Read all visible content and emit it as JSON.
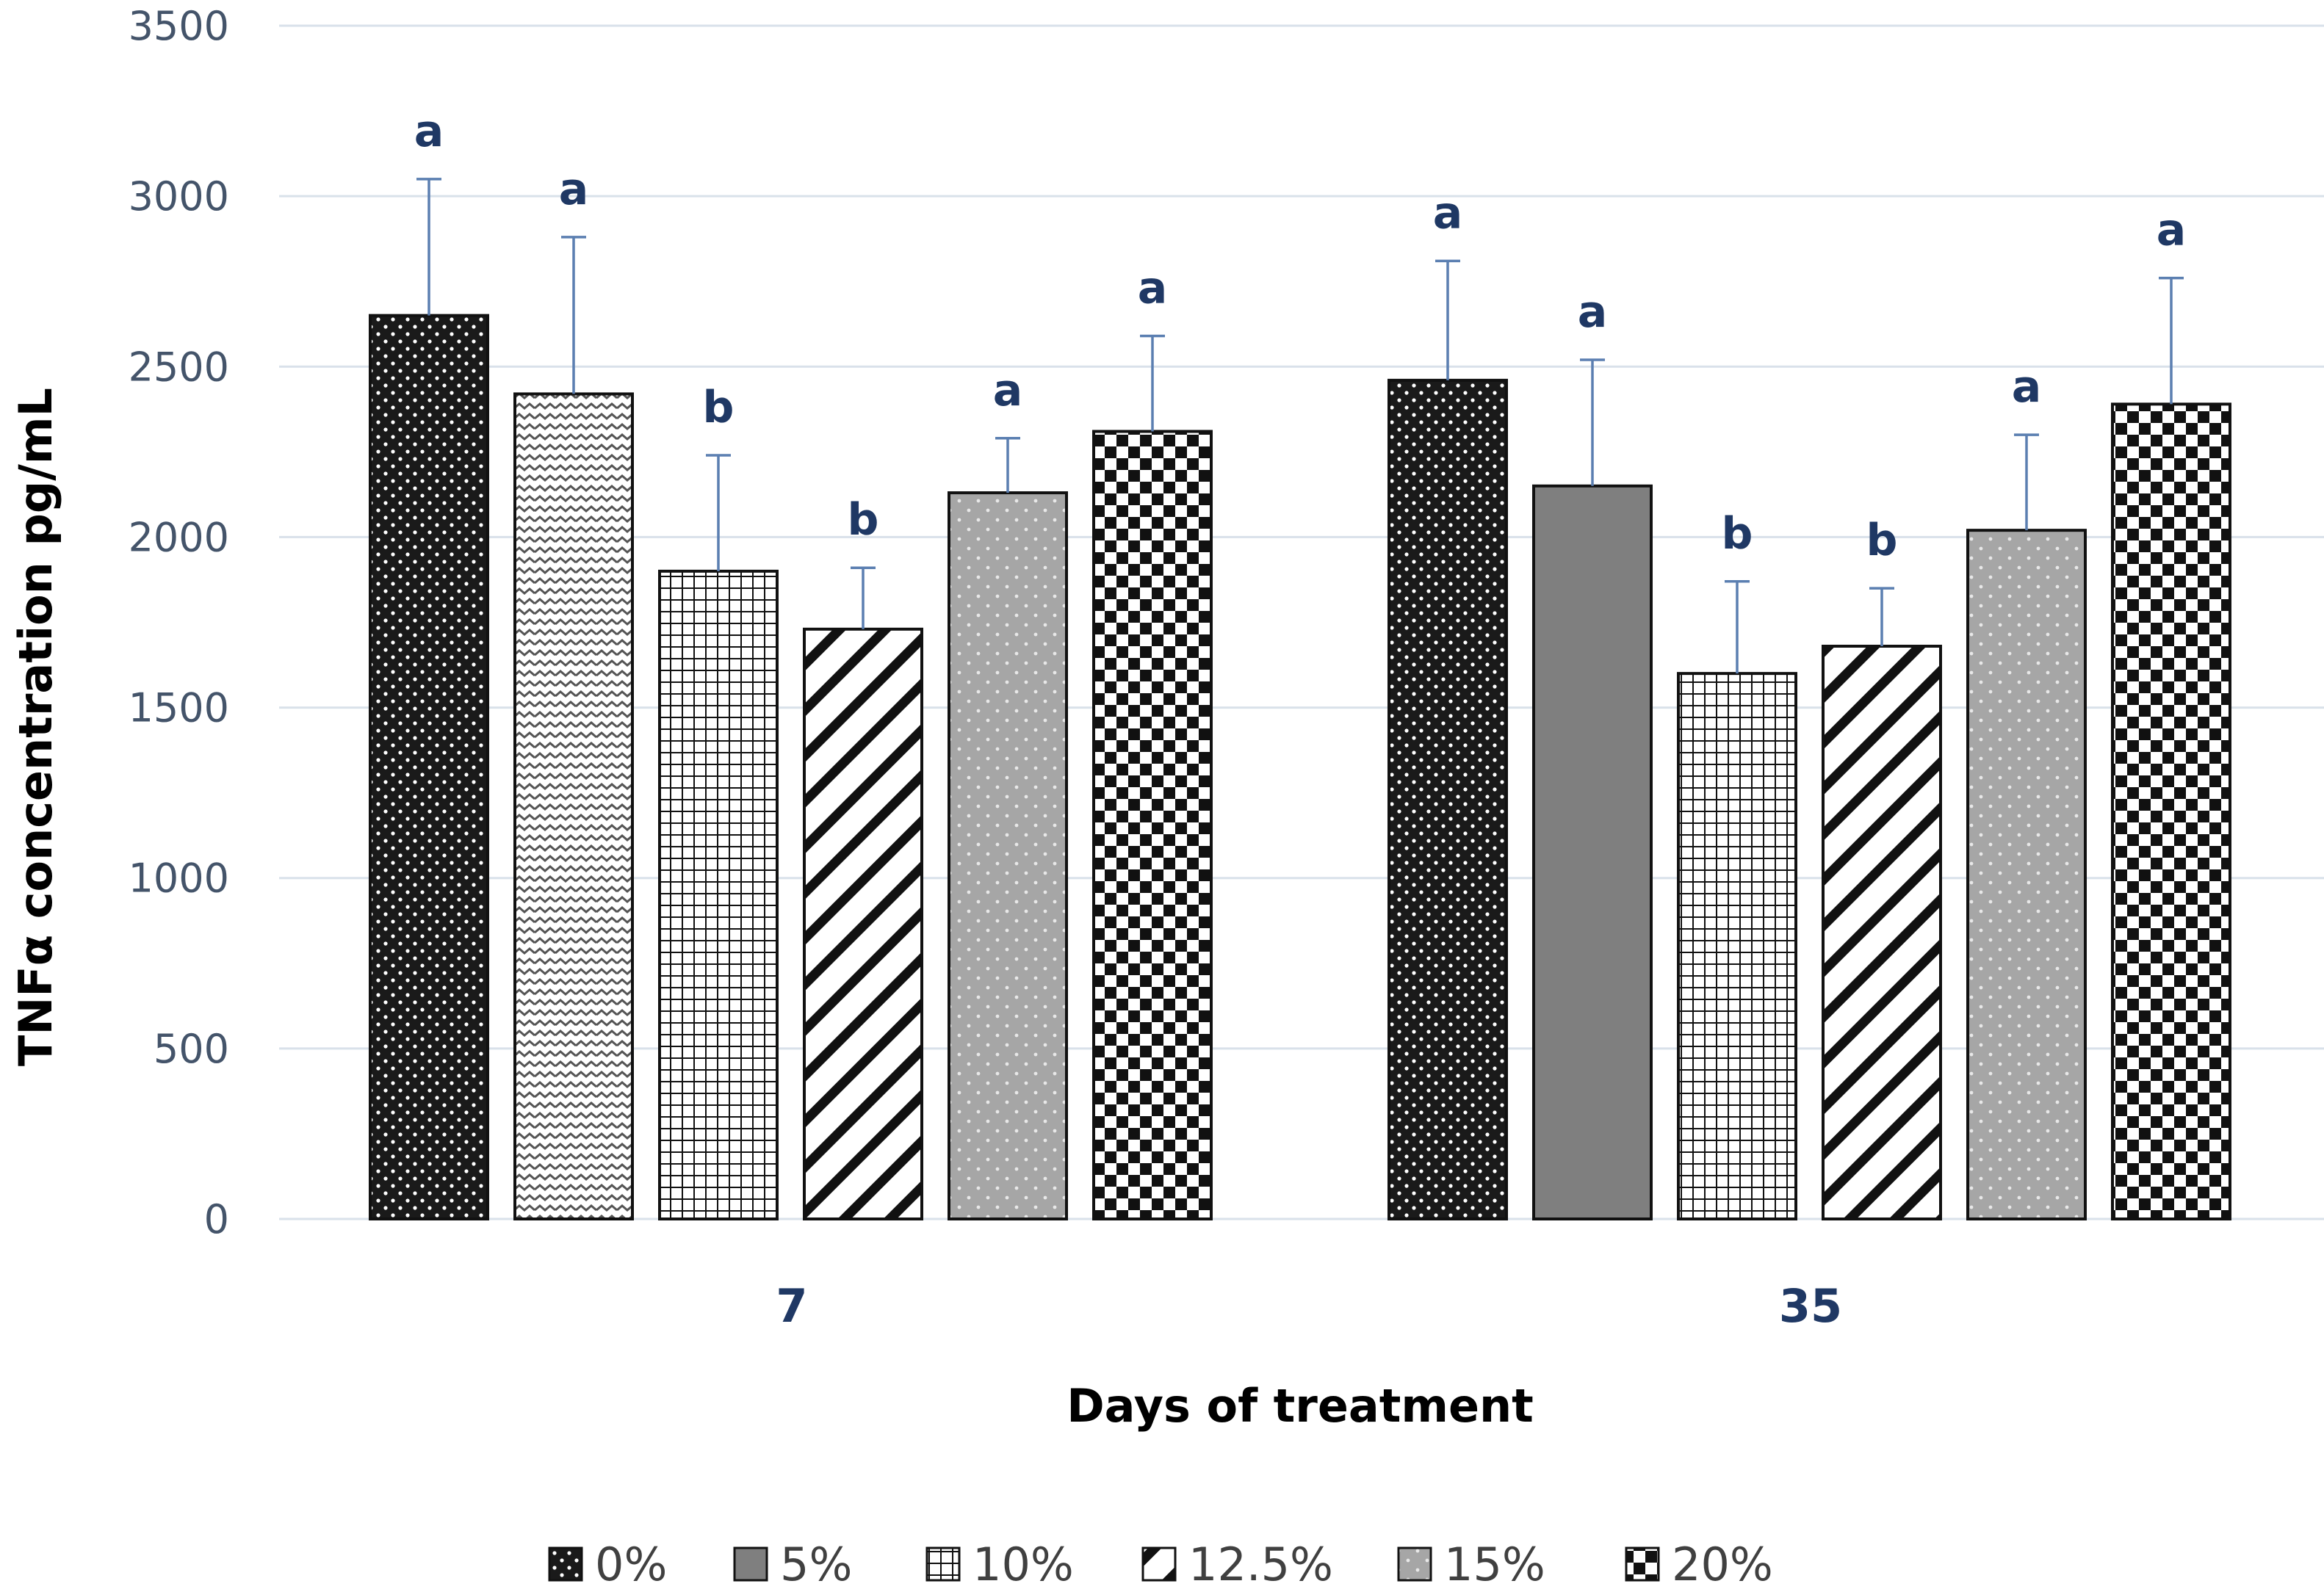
{
  "chart_data": {
    "type": "bar",
    "title": "",
    "xlabel": "Days of treatment",
    "ylabel": "TNFα concentration pg/mL",
    "ylim": [
      0,
      3500
    ],
    "yticks": [
      0,
      500,
      1000,
      1500,
      2000,
      2500,
      3000,
      3500
    ],
    "tick_labels": [
      "0",
      "500",
      "1000",
      "1500",
      "2000",
      "2500",
      "3000",
      "3500"
    ],
    "grid": true,
    "legend_position": "bottom",
    "categories": [
      "7",
      "35"
    ],
    "series": [
      {
        "name": "0%",
        "pattern": "dots-dark",
        "values": [
          2650,
          2460
        ],
        "errors": [
          400,
          350
        ],
        "labels": [
          "a",
          "a"
        ]
      },
      {
        "name": "5%",
        "pattern": "zigzag",
        "values": [
          2420,
          2150
        ],
        "errors": [
          460,
          370
        ],
        "labels": [
          "a",
          "a"
        ]
      },
      {
        "name": "10%",
        "pattern": "grid",
        "values": [
          1900,
          1600
        ],
        "errors": [
          340,
          270
        ],
        "labels": [
          "b",
          "b"
        ]
      },
      {
        "name": "12.5%",
        "pattern": "diagonal",
        "values": [
          1730,
          1680
        ],
        "errors": [
          180,
          170
        ],
        "labels": [
          "b",
          "b"
        ]
      },
      {
        "name": "15%",
        "pattern": "dots-gray",
        "values": [
          2130,
          2020
        ],
        "errors": [
          160,
          280
        ],
        "labels": [
          "a",
          "a"
        ]
      },
      {
        "name": "20%",
        "pattern": "checker",
        "values": [
          2310,
          2390
        ],
        "errors": [
          280,
          370
        ],
        "labels": [
          "a",
          "a"
        ]
      }
    ]
  },
  "colors": {
    "grid": "#d9e1ea",
    "error_bar": "#5b7fb1",
    "tick_text": "#44546a",
    "sig_text": "#1f3864",
    "bar_dark": "#1a1a1a",
    "bar_gray": "#7f7f7f",
    "bar_light_gray": "#a6a6a6"
  }
}
